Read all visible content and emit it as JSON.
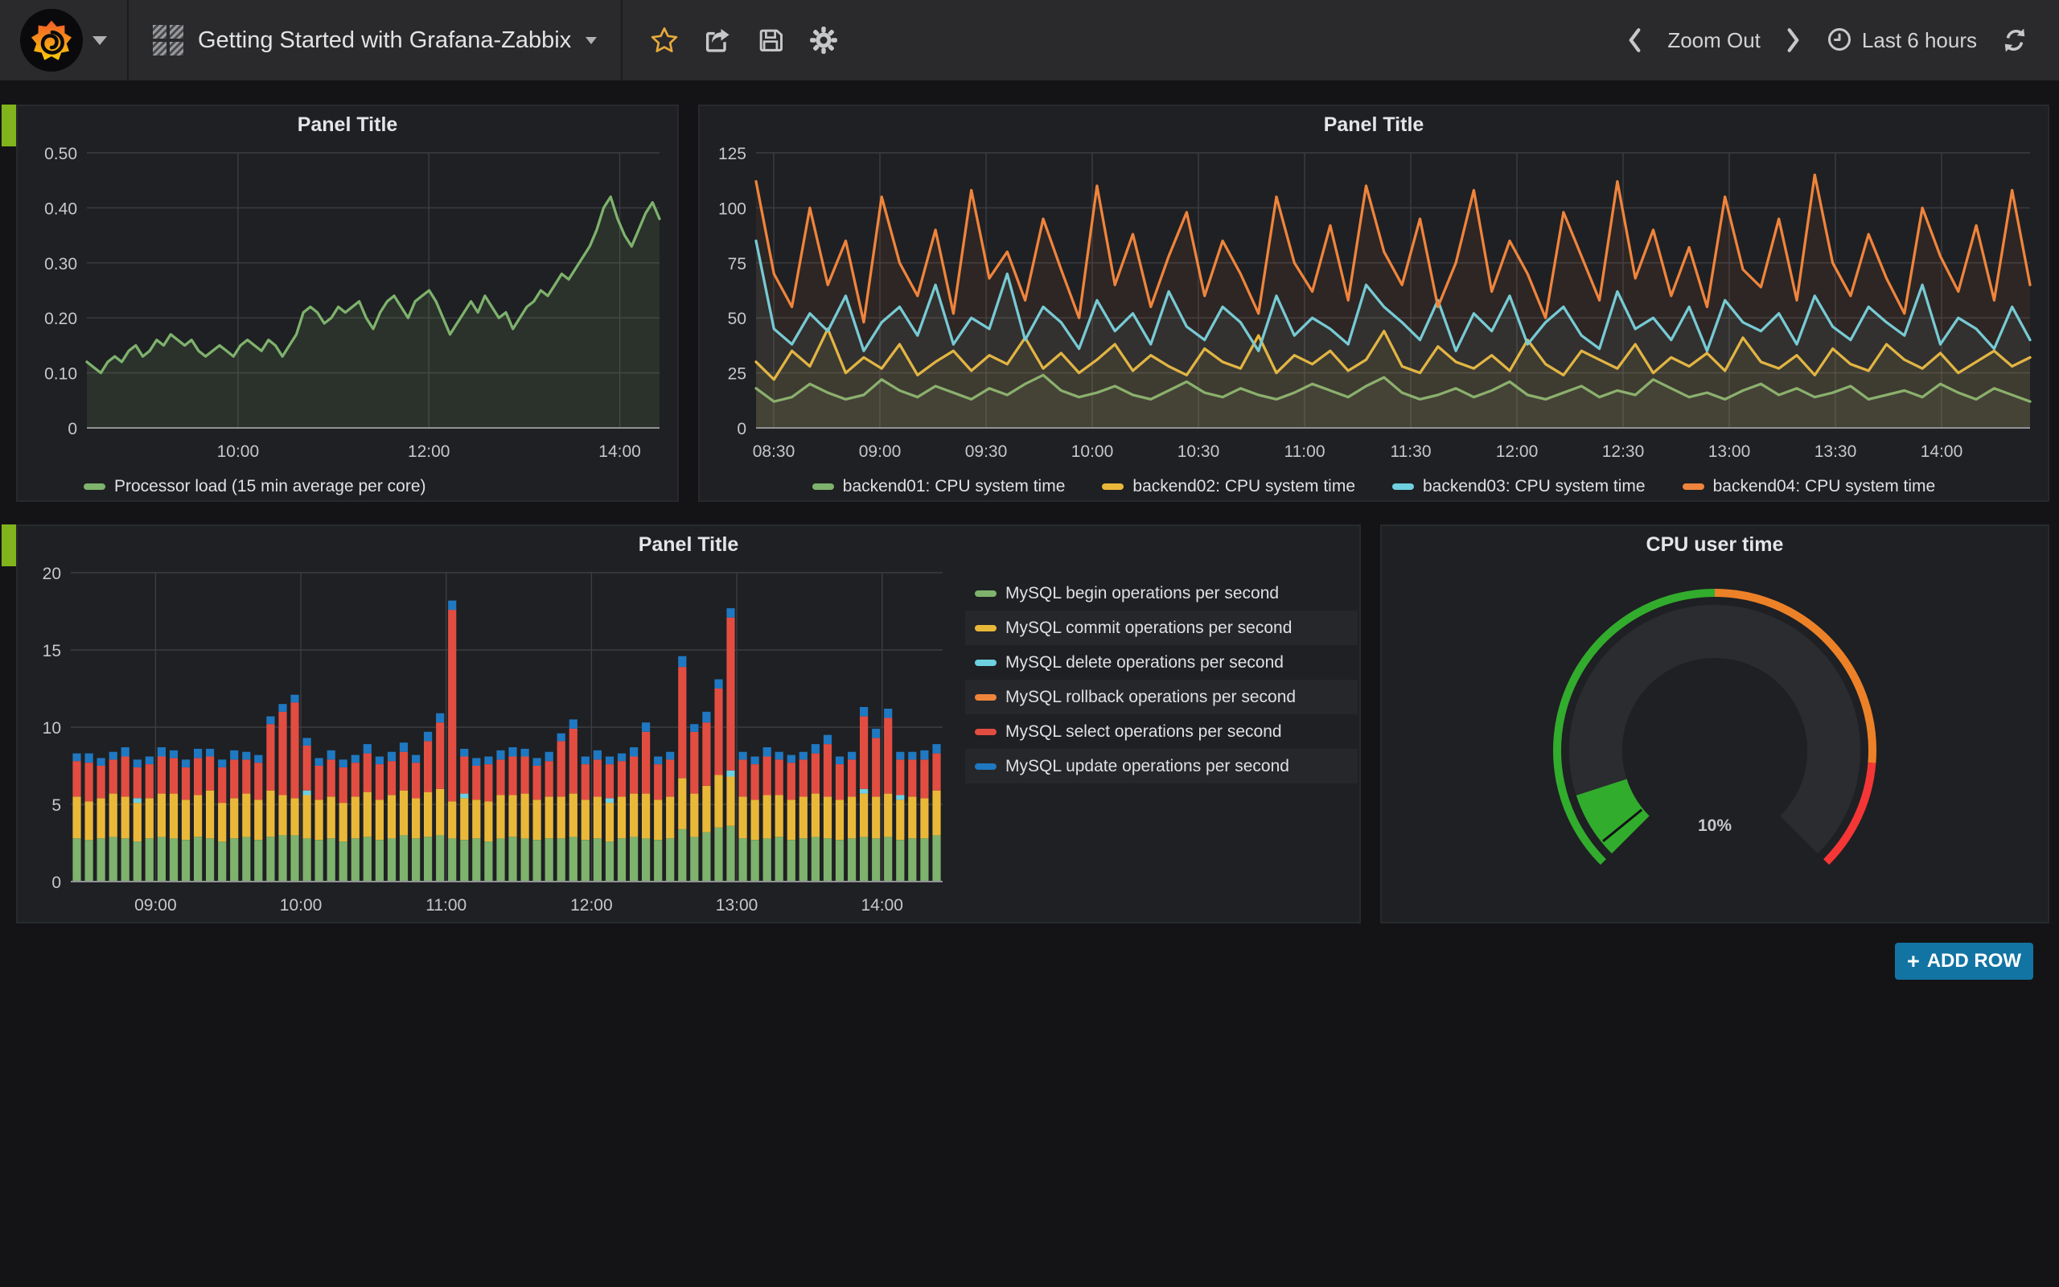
{
  "navbar": {
    "title": "Getting Started with Grafana-Zabbix",
    "zoom_out": "Zoom Out",
    "time_range": "Last 6 hours"
  },
  "buttons": {
    "add_row": "ADD ROW"
  },
  "icons": [
    "grafana-logo",
    "caret-down",
    "dashboard-grid",
    "star",
    "share",
    "save",
    "gear",
    "chevron-left",
    "chevron-right",
    "clock",
    "refresh",
    "plus"
  ],
  "panels": {
    "cpu_load": {
      "title": "Panel Title",
      "legend": [
        {
          "label": "Processor load (15 min average per core)",
          "color": "#7EB26D"
        }
      ]
    },
    "cpu_system": {
      "title": "Panel Title",
      "legend": [
        {
          "label": "backend01: CPU system time",
          "color": "#7EB26D"
        },
        {
          "label": "backend02: CPU system time",
          "color": "#EAB839"
        },
        {
          "label": "backend03: CPU system time",
          "color": "#6ED0E0"
        },
        {
          "label": "backend04: CPU system time",
          "color": "#EF843C"
        }
      ]
    },
    "mysql_ops": {
      "title": "Panel Title",
      "legend": [
        {
          "label": "MySQL begin operations per second",
          "color": "#7EB26D"
        },
        {
          "label": "MySQL commit operations per second",
          "color": "#EAB839"
        },
        {
          "label": "MySQL delete operations per second",
          "color": "#6ED0E0"
        },
        {
          "label": "MySQL rollback operations per second",
          "color": "#EF843C"
        },
        {
          "label": "MySQL select operations per second",
          "color": "#E24D42"
        },
        {
          "label": "MySQL update operations per second",
          "color": "#1F78C1"
        }
      ]
    },
    "gauge": {
      "title": "CPU user time",
      "value": "10%"
    }
  },
  "chart_data": [
    {
      "id": "cpu_load",
      "type": "line",
      "title": "Panel Title",
      "x_start": "08:25",
      "x_end": "14:25",
      "x_ticks": [
        "10:00",
        "12:00",
        "14:00"
      ],
      "ylim": [
        0,
        0.5
      ],
      "y_ticks": [
        0,
        0.1,
        0.2,
        0.3,
        0.4,
        0.5
      ],
      "y_tick_labels": [
        "0",
        "0.10",
        "0.20",
        "0.30",
        "0.40",
        "0.50"
      ],
      "series": [
        {
          "name": "Processor load (15 min average per core)",
          "color": "#7EB26D",
          "fill_opacity": 0.12,
          "values": [
            0.12,
            0.11,
            0.1,
            0.12,
            0.13,
            0.12,
            0.14,
            0.15,
            0.13,
            0.14,
            0.16,
            0.15,
            0.17,
            0.16,
            0.15,
            0.16,
            0.14,
            0.13,
            0.14,
            0.15,
            0.14,
            0.13,
            0.15,
            0.16,
            0.15,
            0.14,
            0.16,
            0.15,
            0.13,
            0.15,
            0.17,
            0.21,
            0.22,
            0.21,
            0.19,
            0.2,
            0.22,
            0.21,
            0.22,
            0.23,
            0.2,
            0.18,
            0.21,
            0.23,
            0.24,
            0.22,
            0.2,
            0.23,
            0.24,
            0.25,
            0.23,
            0.2,
            0.17,
            0.19,
            0.21,
            0.23,
            0.21,
            0.24,
            0.22,
            0.2,
            0.21,
            0.18,
            0.2,
            0.22,
            0.23,
            0.25,
            0.24,
            0.26,
            0.28,
            0.27,
            0.29,
            0.31,
            0.33,
            0.36,
            0.4,
            0.42,
            0.38,
            0.35,
            0.33,
            0.36,
            0.39,
            0.41,
            0.38
          ]
        }
      ]
    },
    {
      "id": "cpu_system",
      "type": "line",
      "title": "Panel Title",
      "x_start": "08:25",
      "x_end": "14:25",
      "x_ticks": [
        "08:30",
        "09:00",
        "09:30",
        "10:00",
        "10:30",
        "11:00",
        "11:30",
        "12:00",
        "12:30",
        "13:00",
        "13:30",
        "14:00"
      ],
      "ylim": [
        0,
        125
      ],
      "y_ticks": [
        0,
        25,
        50,
        75,
        100,
        125
      ],
      "y_tick_labels": [
        "0",
        "25",
        "50",
        "75",
        "100",
        "125"
      ],
      "series": [
        {
          "name": "backend01: CPU system time",
          "color": "#7EB26D",
          "fill_opacity": 0.07,
          "values": [
            18,
            12,
            14,
            20,
            16,
            13,
            15,
            22,
            17,
            14,
            19,
            16,
            13,
            18,
            15,
            20,
            24,
            17,
            14,
            16,
            19,
            15,
            13,
            17,
            21,
            16,
            14,
            18,
            15,
            13,
            16,
            20,
            17,
            14,
            19,
            23,
            16,
            13,
            15,
            18,
            14,
            17,
            21,
            15,
            13,
            16,
            19,
            14,
            17,
            15,
            22,
            18,
            14,
            16,
            13,
            17,
            20,
            15,
            18,
            14,
            16,
            19,
            13,
            15,
            17,
            14,
            20,
            16,
            13,
            18,
            15,
            12
          ]
        },
        {
          "name": "backend02: CPU system time",
          "color": "#EAB839",
          "fill_opacity": 0.07,
          "values": [
            30,
            22,
            35,
            28,
            45,
            25,
            32,
            27,
            38,
            24,
            30,
            35,
            26,
            33,
            29,
            41,
            27,
            34,
            25,
            31,
            38,
            26,
            33,
            28,
            24,
            36,
            30,
            27,
            42,
            25,
            33,
            29,
            35,
            26,
            31,
            44,
            28,
            25,
            37,
            30,
            27,
            33,
            26,
            40,
            29,
            24,
            35,
            31,
            27,
            38,
            25,
            32,
            28,
            34,
            26,
            41,
            30,
            27,
            33,
            24,
            36,
            29,
            26,
            38,
            31,
            27,
            34,
            25,
            30,
            35,
            28,
            32
          ]
        },
        {
          "name": "backend03: CPU system time",
          "color": "#6ED0E0",
          "fill_opacity": 0.07,
          "values": [
            85,
            45,
            38,
            52,
            44,
            60,
            35,
            48,
            55,
            42,
            65,
            38,
            50,
            45,
            70,
            40,
            55,
            48,
            36,
            58,
            44,
            52,
            38,
            62,
            46,
            40,
            55,
            48,
            35,
            60,
            42,
            50,
            45,
            38,
            65,
            55,
            48,
            40,
            58,
            35,
            52,
            44,
            60,
            38,
            48,
            55,
            42,
            36,
            62,
            45,
            50,
            40,
            55,
            35,
            58,
            48,
            44,
            52,
            38,
            60,
            46,
            40,
            55,
            48,
            42,
            65,
            38,
            50,
            45,
            36,
            55,
            40
          ]
        },
        {
          "name": "backend04: CPU system time",
          "color": "#EF843C",
          "fill_opacity": 0.07,
          "values": [
            112,
            70,
            55,
            100,
            65,
            85,
            48,
            105,
            75,
            60,
            90,
            52,
            108,
            68,
            80,
            58,
            95,
            72,
            50,
            110,
            65,
            88,
            55,
            78,
            98,
            60,
            85,
            70,
            52,
            105,
            75,
            62,
            92,
            58,
            110,
            80,
            65,
            95,
            55,
            75,
            108,
            62,
            85,
            70,
            50,
            98,
            78,
            58,
            112,
            68,
            90,
            60,
            82,
            55,
            105,
            72,
            64,
            95,
            58,
            115,
            75,
            60,
            88,
            68,
            52,
            100,
            78,
            62,
            92,
            58,
            108,
            65
          ]
        }
      ]
    },
    {
      "id": "mysql_ops",
      "type": "stacked_bar",
      "title": "Panel Title",
      "x_start": "08:25",
      "x_end": "14:25",
      "x_ticks": [
        "09:00",
        "10:00",
        "11:00",
        "12:00",
        "13:00",
        "14:00"
      ],
      "ylim": [
        0,
        20
      ],
      "y_ticks": [
        0,
        5,
        10,
        15,
        20
      ],
      "y_tick_labels": [
        "0",
        "5",
        "10",
        "15",
        "20"
      ],
      "series": [
        {
          "name": "MySQL begin operations per second",
          "color": "#7EB26D",
          "values": [
            2.8,
            2.7,
            2.8,
            2.9,
            2.8,
            2.6,
            2.8,
            2.9,
            2.8,
            2.7,
            2.9,
            2.8,
            2.6,
            2.8,
            2.9,
            2.7,
            2.9,
            3.0,
            3.0,
            2.8,
            2.7,
            2.8,
            2.6,
            2.8,
            2.9,
            2.7,
            2.8,
            3.0,
            2.8,
            2.9,
            3.0,
            2.8,
            2.7,
            2.8,
            2.6,
            2.8,
            2.9,
            2.8,
            2.7,
            2.8,
            2.8,
            2.9,
            2.7,
            2.8,
            2.6,
            2.8,
            2.9,
            2.8,
            2.7,
            2.8,
            3.4,
            2.9,
            3.2,
            3.5,
            3.6,
            2.8,
            2.7,
            2.8,
            2.9,
            2.7,
            2.8,
            2.9,
            2.8,
            2.7,
            2.8,
            2.9,
            2.8,
            2.9,
            2.7,
            2.8,
            2.8,
            3.0
          ]
        },
        {
          "name": "MySQL commit operations per second",
          "color": "#EAB839",
          "values": [
            2.7,
            2.5,
            2.6,
            2.8,
            2.7,
            2.5,
            2.6,
            2.8,
            2.9,
            2.6,
            2.7,
            3.1,
            2.5,
            2.6,
            2.8,
            2.6,
            3.0,
            2.6,
            2.4,
            2.8,
            2.6,
            2.7,
            2.5,
            2.7,
            2.9,
            2.6,
            2.8,
            2.9,
            2.6,
            2.9,
            3.0,
            2.4,
            2.7,
            2.5,
            2.6,
            2.8,
            2.7,
            2.9,
            2.6,
            2.7,
            2.7,
            2.8,
            2.6,
            2.7,
            2.5,
            2.7,
            2.8,
            2.9,
            2.6,
            2.7,
            3.3,
            2.8,
            3.0,
            3.4,
            3.2,
            2.7,
            2.6,
            2.8,
            2.7,
            2.6,
            2.7,
            2.8,
            2.7,
            2.6,
            2.7,
            2.8,
            2.7,
            2.8,
            2.6,
            2.7,
            2.6,
            2.9
          ]
        },
        {
          "name": "MySQL delete operations per second",
          "color": "#6ED0E0",
          "values": [
            0,
            0,
            0,
            0,
            0,
            0.3,
            0,
            0,
            0,
            0,
            0,
            0,
            0,
            0,
            0,
            0,
            0,
            0,
            0,
            0.3,
            0,
            0,
            0,
            0,
            0,
            0,
            0,
            0,
            0,
            0,
            0,
            0,
            0.3,
            0,
            0,
            0,
            0,
            0,
            0,
            0,
            0,
            0,
            0,
            0,
            0.3,
            0,
            0,
            0,
            0,
            0,
            0,
            0,
            0,
            0,
            0.4,
            0,
            0,
            0,
            0,
            0,
            0,
            0,
            0,
            0,
            0,
            0.3,
            0,
            0,
            0.3,
            0,
            0,
            0
          ]
        },
        {
          "name": "MySQL rollback operations per second",
          "color": "#EF843C",
          "values": [
            0,
            0,
            0,
            0,
            0,
            0,
            0,
            0,
            0,
            0,
            0,
            0,
            0,
            0,
            0,
            0,
            0,
            0,
            0,
            0,
            0,
            0,
            0,
            0,
            0,
            0,
            0,
            0,
            0,
            0,
            0,
            0,
            0,
            0,
            0,
            0,
            0,
            0,
            0,
            0,
            0,
            0,
            0,
            0,
            0,
            0,
            0,
            0,
            0,
            0,
            0,
            0,
            0,
            0,
            0,
            0,
            0,
            0,
            0,
            0,
            0,
            0,
            0,
            0,
            0,
            0,
            0,
            0,
            0,
            0,
            0,
            0
          ]
        },
        {
          "name": "MySQL select operations per second",
          "color": "#E24D42",
          "values": [
            2.3,
            2.5,
            2.1,
            2.2,
            2.6,
            2.0,
            2.2,
            2.4,
            2.3,
            2.1,
            2.4,
            2.2,
            2.3,
            2.5,
            2.2,
            2.4,
            4.3,
            5.4,
            6.2,
            2.9,
            2.2,
            2.4,
            2.3,
            2.2,
            2.5,
            2.3,
            2.2,
            2.5,
            2.3,
            3.3,
            4.3,
            12.4,
            2.4,
            2.2,
            2.4,
            2.3,
            2.5,
            2.4,
            2.2,
            2.3,
            3.6,
            4.2,
            2.3,
            2.4,
            2.2,
            2.3,
            2.4,
            4.0,
            2.3,
            2.4,
            7.2,
            4.0,
            4.1,
            5.6,
            9.9,
            2.4,
            2.3,
            2.5,
            2.3,
            2.4,
            2.4,
            2.6,
            3.4,
            2.3,
            2.4,
            4.7,
            3.8,
            4.9,
            2.3,
            2.4,
            2.5,
            2.4
          ]
        },
        {
          "name": "MySQL update operations per second",
          "color": "#1F78C1",
          "values": [
            0.5,
            0.6,
            0.5,
            0.5,
            0.6,
            0.5,
            0.5,
            0.6,
            0.5,
            0.5,
            0.6,
            0.5,
            0.5,
            0.6,
            0.5,
            0.5,
            0.5,
            0.5,
            0.5,
            0.5,
            0.5,
            0.6,
            0.5,
            0.5,
            0.6,
            0.5,
            0.6,
            0.6,
            0.5,
            0.6,
            0.6,
            0.6,
            0.5,
            0.5,
            0.5,
            0.6,
            0.6,
            0.5,
            0.5,
            0.6,
            0.5,
            0.6,
            0.5,
            0.6,
            0.5,
            0.5,
            0.6,
            0.6,
            0.5,
            0.5,
            0.7,
            0.5,
            0.7,
            0.6,
            0.6,
            0.5,
            0.5,
            0.6,
            0.5,
            0.5,
            0.5,
            0.6,
            0.6,
            0.5,
            0.5,
            0.6,
            0.6,
            0.6,
            0.5,
            0.5,
            0.6,
            0.6
          ]
        }
      ]
    },
    {
      "id": "cpu_gauge",
      "type": "gauge",
      "title": "CPU user time",
      "value": 10,
      "min": 0,
      "max": 100,
      "display": "10%",
      "ring_color": "#2b2c2f",
      "thresholds": [
        {
          "to": 0.5,
          "color": "#32AC2D"
        },
        {
          "to": 0.85,
          "color": "#ED8128"
        },
        {
          "to": 1,
          "color": "#F53636"
        }
      ]
    }
  ]
}
